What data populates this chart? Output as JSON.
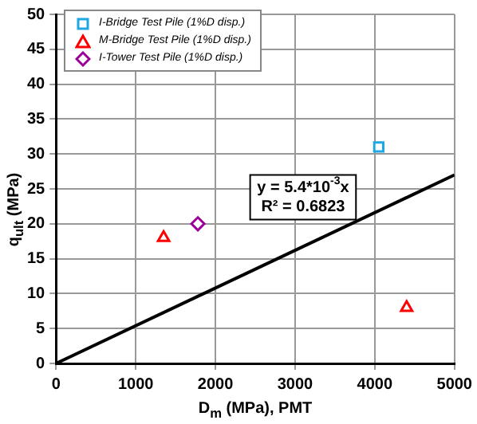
{
  "chart_data": {
    "type": "scatter",
    "xlabel": "D$_{m}$ (MPa), PMT",
    "ylabel": "q$_{ult}$ (MPa)",
    "xlim": [
      0,
      5000
    ],
    "xticks": [
      0,
      1000,
      2000,
      3000,
      4000,
      5000
    ],
    "ylim": [
      0,
      50
    ],
    "yticks": [
      0,
      5,
      10,
      15,
      20,
      25,
      30,
      35,
      40,
      45,
      50
    ],
    "grid": true,
    "legend": "top left",
    "series": [
      {
        "name": "I-Bridge Test Pile (1%D disp.)",
        "color": "#1ea7e0",
        "marker": "square",
        "x": [
          4050
        ],
        "values": [
          31
        ]
      },
      {
        "name": "M-Bridge Test Pile (1%D disp.)",
        "color": "#ff0000",
        "marker": "triangle",
        "x": [
          1350,
          4400
        ],
        "values": [
          18,
          8
        ]
      },
      {
        "name": "I-Tower Test Pile (1%D disp.)",
        "color": "#990099",
        "marker": "diamond",
        "x": [
          1780
        ],
        "values": [
          20
        ]
      },
      {
        "type": "line",
        "color": "#000000",
        "line_style": "solid",
        "marker": "none",
        "x": [
          0,
          5000
        ],
        "values": [
          0,
          27
        ]
      }
    ],
    "annotations": [
      "y = 5.4*10$^{-3}$x",
      "R² = 0.6823"
    ]
  }
}
